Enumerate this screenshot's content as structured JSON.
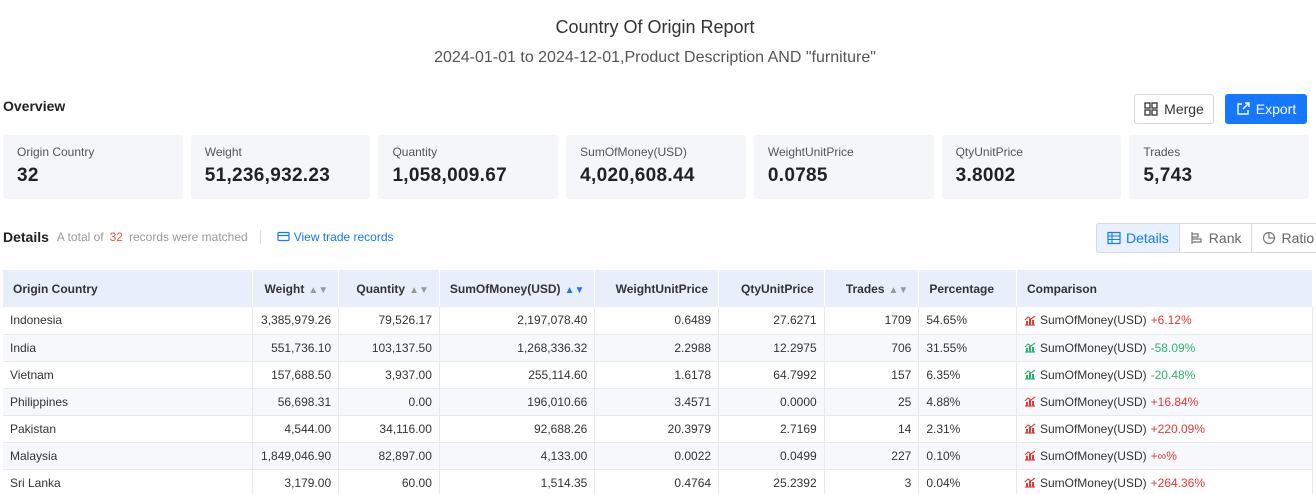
{
  "header": {
    "title": "Country Of Origin Report",
    "subtitle": "2024-01-01 to 2024-12-01,Product Description AND \"furniture\""
  },
  "overview": {
    "label": "Overview",
    "merge_label": "Merge",
    "export_label": "Export",
    "stats": [
      {
        "label": "Origin Country",
        "value": "32"
      },
      {
        "label": "Weight",
        "value": "51,236,932.23"
      },
      {
        "label": "Quantity",
        "value": "1,058,009.67"
      },
      {
        "label": "SumOfMoney(USD)",
        "value": "4,020,608.44"
      },
      {
        "label": "WeightUnitPrice",
        "value": "0.0785"
      },
      {
        "label": "QtyUnitPrice",
        "value": "3.8002"
      },
      {
        "label": "Trades",
        "value": "5,743"
      }
    ]
  },
  "details": {
    "label": "Details",
    "total_prefix": "A total of",
    "total_count": "32",
    "total_suffix": "records were matched",
    "view_link": "View trade records",
    "tabs": [
      "Details",
      "Rank",
      "Ratio"
    ]
  },
  "table": {
    "columns": [
      "Origin Country",
      "Weight",
      "Quantity",
      "SumOfMoney(USD)",
      "WeightUnitPrice",
      "QtyUnitPrice",
      "Trades",
      "Percentage",
      "Comparison"
    ],
    "rows": [
      {
        "country": "Indonesia",
        "weight": "3,385,979.26",
        "quantity": "79,526.17",
        "money": "2,197,078.40",
        "wup": "0.6489",
        "qup": "27.6271",
        "trades": "1709",
        "pct": "54.65%",
        "cmp_label": "SumOfMoney(USD)",
        "cmp_value": "+6.12%",
        "trend": "up"
      },
      {
        "country": "India",
        "weight": "551,736.10",
        "quantity": "103,137.50",
        "money": "1,268,336.32",
        "wup": "2.2988",
        "qup": "12.2975",
        "trades": "706",
        "pct": "31.55%",
        "cmp_label": "SumOfMoney(USD)",
        "cmp_value": "-58.09%",
        "trend": "down"
      },
      {
        "country": "Vietnam",
        "weight": "157,688.50",
        "quantity": "3,937.00",
        "money": "255,114.60",
        "wup": "1.6178",
        "qup": "64.7992",
        "trades": "157",
        "pct": "6.35%",
        "cmp_label": "SumOfMoney(USD)",
        "cmp_value": "-20.48%",
        "trend": "down"
      },
      {
        "country": "Philippines",
        "weight": "56,698.31",
        "quantity": "0.00",
        "money": "196,010.66",
        "wup": "3.4571",
        "qup": "0.0000",
        "trades": "25",
        "pct": "4.88%",
        "cmp_label": "SumOfMoney(USD)",
        "cmp_value": "+16.84%",
        "trend": "up"
      },
      {
        "country": "Pakistan",
        "weight": "4,544.00",
        "quantity": "34,116.00",
        "money": "92,688.26",
        "wup": "20.3979",
        "qup": "2.7169",
        "trades": "14",
        "pct": "2.31%",
        "cmp_label": "SumOfMoney(USD)",
        "cmp_value": "+220.09%",
        "trend": "up"
      },
      {
        "country": "Malaysia",
        "weight": "1,849,046.90",
        "quantity": "82,897.00",
        "money": "4,133.00",
        "wup": "0.0022",
        "qup": "0.0499",
        "trades": "227",
        "pct": "0.10%",
        "cmp_label": "SumOfMoney(USD)",
        "cmp_value": "+∞%",
        "trend": "up"
      },
      {
        "country": "Sri Lanka",
        "weight": "3,179.00",
        "quantity": "60.00",
        "money": "1,514.35",
        "wup": "0.4764",
        "qup": "25.2392",
        "trades": "3",
        "pct": "0.04%",
        "cmp_label": "SumOfMoney(USD)",
        "cmp_value": "+264.36%",
        "trend": "up"
      }
    ]
  },
  "colors": {
    "accent": "#1677ff",
    "up": "#e53935",
    "down": "#2fb36f",
    "count": "#e8543e"
  }
}
